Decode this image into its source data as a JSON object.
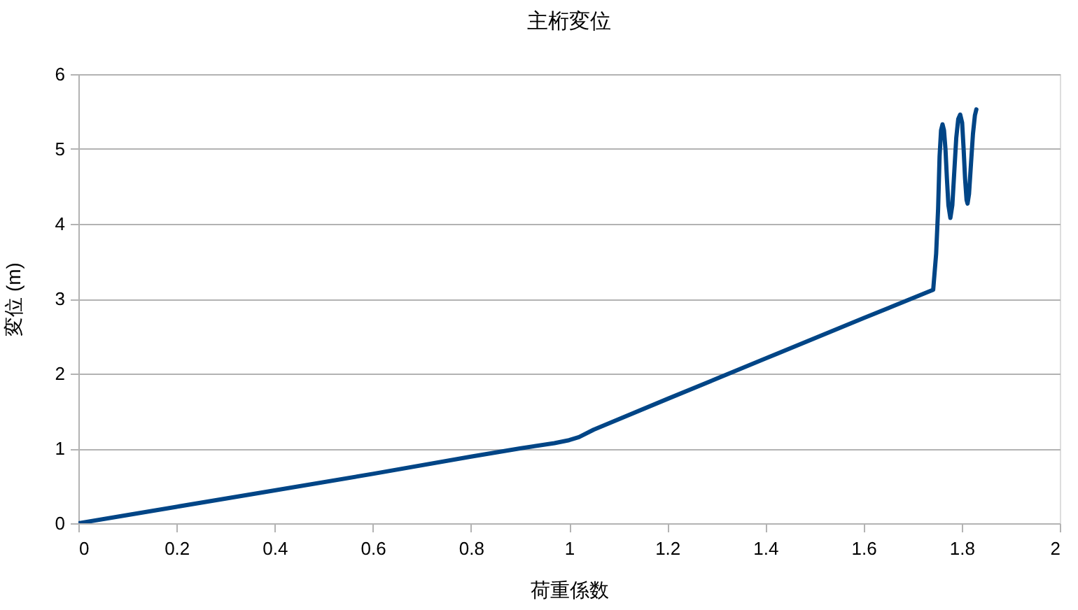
{
  "chart_data": {
    "type": "line",
    "title": "主桁変位",
    "xlabel": "荷重係数",
    "ylabel": "変位 (m)",
    "x": [
      0,
      0.1,
      0.2,
      0.4,
      0.6,
      0.8,
      0.9,
      0.97,
      1.0,
      1.02,
      1.05,
      1.2,
      1.4,
      1.6,
      1.742,
      1.748,
      1.752,
      1.755,
      1.758,
      1.761,
      1.764,
      1.767,
      1.77,
      1.773,
      1.777,
      1.781,
      1.785,
      1.789,
      1.793,
      1.797,
      1.801,
      1.804,
      1.807,
      1.81,
      1.812,
      1.815,
      1.819,
      1.823,
      1.827,
      1.83
    ],
    "series": [
      {
        "color": "#004586",
        "values": [
          0,
          0.11,
          0.22,
          0.44,
          0.66,
          0.89,
          1.0,
          1.07,
          1.11,
          1.15,
          1.25,
          1.66,
          2.2,
          2.74,
          3.12,
          3.6,
          4.2,
          4.9,
          5.25,
          5.33,
          5.25,
          5.0,
          4.6,
          4.25,
          4.08,
          4.25,
          4.7,
          5.15,
          5.4,
          5.46,
          5.35,
          5.0,
          4.6,
          4.32,
          4.27,
          4.4,
          4.8,
          5.2,
          5.45,
          5.53
        ]
      }
    ],
    "xlim": [
      0,
      2
    ],
    "xticks": [
      0,
      0.2,
      0.4,
      0.6,
      0.8,
      1,
      1.2,
      1.4,
      1.6,
      1.8,
      2
    ],
    "ylim": [
      0,
      6
    ],
    "yticks": [
      0,
      1,
      2,
      3,
      4,
      5,
      6
    ],
    "grid": "y",
    "marker": "none",
    "line_style": "solid"
  }
}
